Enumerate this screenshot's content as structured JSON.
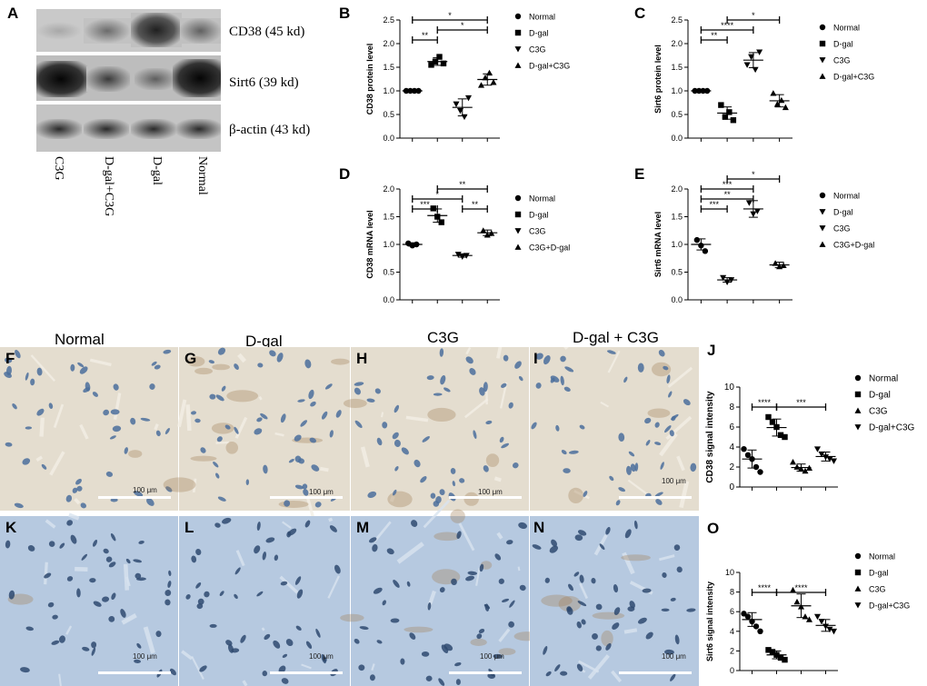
{
  "panel_letters": {
    "A": "A",
    "B": "B",
    "C": "C",
    "D": "D",
    "E": "E",
    "F": "F",
    "G": "G",
    "H": "H",
    "I": "I",
    "J": "J",
    "K": "K",
    "L": "L",
    "M": "M",
    "N": "N",
    "O": "O"
  },
  "blot": {
    "labels": [
      "CD38 (45 kd)",
      "Sirt6 (39 kd)",
      "β-actin (43 kd)"
    ],
    "lanes": [
      "C3G",
      "D-gal+C3G",
      "D-gal",
      "Normal"
    ]
  },
  "histology": {
    "column_titles": [
      "Normal",
      "D-gal",
      "C3G",
      "D-gal + C3G"
    ],
    "scale_label": "100 μm"
  },
  "colors": {
    "tissue_top": "#e4ddcf",
    "tissue_bottom": "#b6c9e0",
    "nuclei_top": "#4b6f9c",
    "nuclei_bottom": "#2f4a70"
  },
  "chart_data": [
    {
      "panel": "B",
      "type": "scatter",
      "ylabel": "CD38 protein level",
      "ylim": [
        0,
        2.5
      ],
      "yticks": [
        "0.0",
        "0.5",
        "1.0",
        "1.5",
        "2.0",
        "2.5"
      ],
      "legend": [
        "Normal",
        "D-gal",
        "C3G",
        "D-gal+C3G"
      ],
      "markers": [
        "circle",
        "square",
        "triangle-down",
        "triangle-up"
      ],
      "groups": [
        [
          1.0,
          1.0,
          1.0,
          1.0
        ],
        [
          1.55,
          1.62,
          1.72,
          1.58
        ],
        [
          0.72,
          0.58,
          0.45,
          0.85
        ],
        [
          1.12,
          1.28,
          1.38,
          1.18
        ]
      ],
      "means": [
        1.0,
        1.62,
        0.65,
        1.24
      ],
      "sd": [
        0,
        0.08,
        0.18,
        0.12
      ],
      "sig": [
        {
          "from": 0,
          "to": 1,
          "level": 0,
          "label": "**"
        },
        {
          "from": 0,
          "to": 3,
          "level": 2,
          "label": "*"
        },
        {
          "from": 1,
          "to": 3,
          "level": 1,
          "label": "*"
        }
      ]
    },
    {
      "panel": "C",
      "type": "scatter",
      "ylabel": "Sirt6 protein level",
      "ylim": [
        0,
        2.5
      ],
      "yticks": [
        "0.0",
        "0.5",
        "1.0",
        "1.5",
        "2.0",
        "2.5"
      ],
      "legend": [
        "Normal",
        "D-gal",
        "C3G",
        "D-gal+C3G"
      ],
      "markers": [
        "circle",
        "square",
        "triangle-down",
        "triangle-up"
      ],
      "groups": [
        [
          1.0,
          1.0,
          1.0,
          1.0
        ],
        [
          0.7,
          0.45,
          0.55,
          0.38
        ],
        [
          1.55,
          1.72,
          1.45,
          1.82
        ],
        [
          0.95,
          0.72,
          0.8,
          0.65
        ]
      ],
      "means": [
        1.0,
        0.53,
        1.65,
        0.79
      ],
      "sd": [
        0,
        0.13,
        0.16,
        0.13
      ],
      "sig": [
        {
          "from": 0,
          "to": 1,
          "level": 0,
          "label": "**"
        },
        {
          "from": 0,
          "to": 2,
          "level": 1,
          "label": "****"
        },
        {
          "from": 1,
          "to": 3,
          "level": 2,
          "label": "*"
        }
      ]
    },
    {
      "panel": "D",
      "type": "scatter",
      "ylabel": "CD38 mRNA level",
      "ylim": [
        0,
        2.0
      ],
      "yticks": [
        "0.0",
        "0.5",
        "1.0",
        "1.5",
        "2.0"
      ],
      "legend": [
        "Normal",
        "D-gal",
        "C3G",
        "C3G+D-gal"
      ],
      "markers": [
        "circle",
        "square",
        "triangle-down",
        "triangle-up"
      ],
      "groups": [
        [
          1.02,
          0.98,
          1.0
        ],
        [
          1.65,
          1.5,
          1.4
        ],
        [
          0.82,
          0.78,
          0.8
        ],
        [
          1.25,
          1.17,
          1.2
        ]
      ],
      "means": [
        1.0,
        1.52,
        0.8,
        1.21
      ],
      "sd": [
        0.03,
        0.12,
        0.03,
        0.05
      ],
      "sig": [
        {
          "from": 0,
          "to": 1,
          "level": 0,
          "label": "***"
        },
        {
          "from": 0,
          "to": 2,
          "level": 1,
          "label": "*"
        },
        {
          "from": 1,
          "to": 3,
          "level": 2,
          "label": "**"
        },
        {
          "from": 2,
          "to": 3,
          "level": 0,
          "label": "**"
        }
      ]
    },
    {
      "panel": "E",
      "type": "scatter",
      "ylabel": "Sirt6 mRNA level",
      "ylim": [
        0,
        2.0
      ],
      "yticks": [
        "0.0",
        "0.5",
        "1.0",
        "1.5",
        "2.0"
      ],
      "legend": [
        "Normal",
        "D-gal",
        "C3G",
        "C3G+D-gal"
      ],
      "markers": [
        "circle",
        "triangle-down",
        "triangle-down",
        "triangle-up"
      ],
      "groups": [
        [
          1.08,
          0.98,
          0.88
        ],
        [
          0.4,
          0.32,
          0.36
        ],
        [
          1.75,
          1.55,
          1.6
        ],
        [
          0.66,
          0.6,
          0.62
        ]
      ],
      "means": [
        1.0,
        0.36,
        1.64,
        0.63
      ],
      "sd": [
        0.1,
        0.04,
        0.15,
        0.05
      ],
      "sig": [
        {
          "from": 0,
          "to": 1,
          "level": 0,
          "label": "***"
        },
        {
          "from": 0,
          "to": 2,
          "level": 1,
          "label": "**"
        },
        {
          "from": 0,
          "to": 2,
          "level": 2,
          "label": "***"
        },
        {
          "from": 1,
          "to": 3,
          "level": 3,
          "label": "*"
        }
      ]
    },
    {
      "panel": "J",
      "type": "scatter",
      "ylabel": "CD38 signal intensity",
      "ylim": [
        0,
        10
      ],
      "yticks": [
        "0",
        "2",
        "4",
        "6",
        "8",
        "10"
      ],
      "legend": [
        "Normal",
        "D-gal",
        "C3G",
        "D-gal+C3G"
      ],
      "markers": [
        "circle",
        "square",
        "triangle-up",
        "triangle-down"
      ],
      "groups": [
        [
          3.8,
          3.2,
          2.8,
          2.0,
          1.5
        ],
        [
          7.0,
          6.5,
          6.0,
          5.2,
          5.0
        ],
        [
          2.5,
          2.0,
          1.8,
          1.6,
          1.9
        ],
        [
          3.8,
          3.3,
          3.0,
          2.8,
          2.6
        ]
      ],
      "means": [
        2.8,
        5.95,
        1.95,
        3.05
      ],
      "sd": [
        0.9,
        0.85,
        0.35,
        0.45
      ],
      "sig": [
        {
          "from": 0,
          "to": 1,
          "level": 0,
          "label": "****"
        },
        {
          "from": 1,
          "to": 3,
          "level": 0,
          "label": "***"
        }
      ]
    },
    {
      "panel": "O",
      "type": "scatter",
      "ylabel": "Sirt6 signal intensity",
      "ylim": [
        0,
        10
      ],
      "yticks": [
        "0",
        "2",
        "4",
        "6",
        "8",
        "10"
      ],
      "legend": [
        "Normal",
        "D-gal",
        "C3G",
        "D-gal+C3G"
      ],
      "markers": [
        "circle",
        "square",
        "triangle-up",
        "triangle-down"
      ],
      "groups": [
        [
          5.8,
          5.5,
          5.0,
          4.5,
          4.0
        ],
        [
          2.1,
          1.9,
          1.6,
          1.3,
          1.1
        ],
        [
          8.2,
          7.0,
          6.5,
          5.5,
          5.2
        ],
        [
          5.5,
          5.0,
          4.5,
          4.2,
          4.0
        ]
      ],
      "means": [
        5.2,
        1.6,
        6.6,
        4.6
      ],
      "sd": [
        0.7,
        0.4,
        1.2,
        0.6
      ],
      "sig": [
        {
          "from": 0,
          "to": 1,
          "level": 0,
          "label": "****"
        },
        {
          "from": 1,
          "to": 3,
          "level": 0,
          "label": "****"
        }
      ]
    }
  ]
}
